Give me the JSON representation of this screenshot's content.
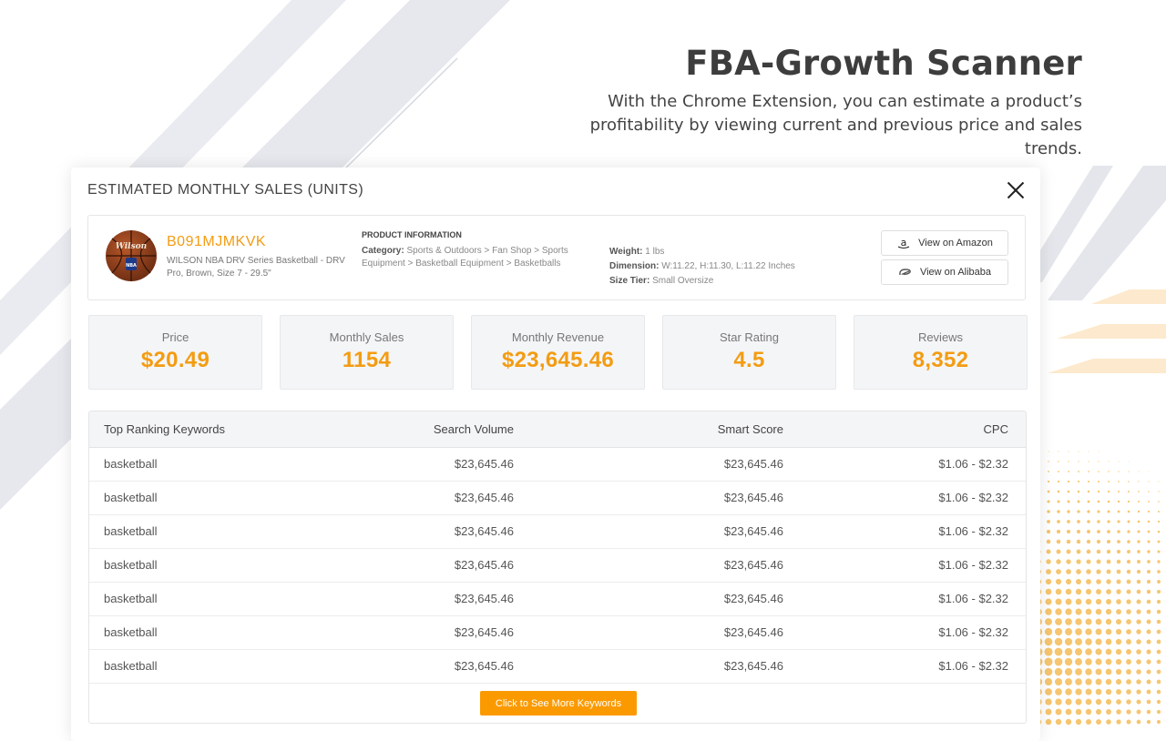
{
  "hero": {
    "title": "FBA-Growth Scanner",
    "subtitle": "With the Chrome Extension, you can estimate a product’s profitability by viewing current and previous price and sales trends."
  },
  "modal": {
    "title": "ESTIMATED MONTHLY SALES (UNITS)",
    "close_icon": "close-icon"
  },
  "product": {
    "image_brand_text": "Wilson",
    "image_logo_text": "NBA",
    "asin": "B091MJMKVK",
    "name": "WILSON NBA DRV Series Basketball - DRV Pro, Brown, Size 7 - 29.5\"",
    "info_heading": "PRODUCT INFORMATION",
    "category_label": "Category:",
    "category_value": "Sports & Outdoors > Fan Shop > Sports Equipment > Basketball Equipment > Basketballs",
    "weight_label": "Weight:",
    "weight_value": "1 lbs",
    "dimension_label": "Dimension:",
    "dimension_value": "W:11.22, H:11.30, L:11.22 Inches",
    "size_tier_label": "Size Tier:",
    "size_tier_value": "Small Oversize",
    "amazon_button": "View on Amazon",
    "alibaba_button": "View on Alibaba"
  },
  "stats": [
    {
      "label": "Price",
      "value": "$20.49"
    },
    {
      "label": "Monthly Sales",
      "value": "1154"
    },
    {
      "label": "Monthly Revenue",
      "value": "$23,645.46"
    },
    {
      "label": "Star Rating",
      "value": "4.5"
    },
    {
      "label": "Reviews",
      "value": "8,352"
    }
  ],
  "keywords": {
    "columns": [
      "Top Ranking Keywords",
      "Search Volume",
      "Smart Score",
      "CPC"
    ],
    "rows": [
      [
        "basketball",
        "$23,645.46",
        "$23,645.46",
        "$1.06 - $2.32"
      ],
      [
        "basketball",
        "$23,645.46",
        "$23,645.46",
        "$1.06 - $2.32"
      ],
      [
        "basketball",
        "$23,645.46",
        "$23,645.46",
        "$1.06 - $2.32"
      ],
      [
        "basketball",
        "$23,645.46",
        "$23,645.46",
        "$1.06 - $2.32"
      ],
      [
        "basketball",
        "$23,645.46",
        "$23,645.46",
        "$1.06 - $2.32"
      ],
      [
        "basketball",
        "$23,645.46",
        "$23,645.46",
        "$1.06 - $2.32"
      ],
      [
        "basketball",
        "$23,645.46",
        "$23,645.46",
        "$1.06 - $2.32"
      ]
    ],
    "more_button": "Click to See More Keywords"
  },
  "colors": {
    "accent": "#f39c12",
    "button_orange": "#fb9a00",
    "stripe_gray": "#e4e6ec",
    "dot_orange": "#f6c56f"
  }
}
